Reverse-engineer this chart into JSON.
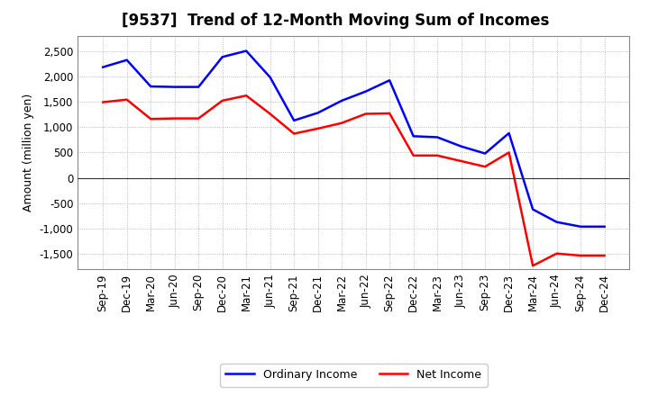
{
  "title": "[9537]  Trend of 12-Month Moving Sum of Incomes",
  "ylabel": "Amount (million yen)",
  "x_labels": [
    "Sep-19",
    "Dec-19",
    "Mar-20",
    "Jun-20",
    "Sep-20",
    "Dec-20",
    "Mar-21",
    "Jun-21",
    "Sep-21",
    "Dec-21",
    "Mar-22",
    "Jun-22",
    "Sep-22",
    "Dec-22",
    "Mar-23",
    "Jun-23",
    "Sep-23",
    "Dec-23",
    "Mar-24",
    "Jun-24",
    "Sep-24",
    "Dec-24"
  ],
  "ordinary_income": [
    2180,
    2320,
    1800,
    1790,
    1790,
    2380,
    2500,
    1980,
    1130,
    1280,
    1520,
    1700,
    1920,
    820,
    800,
    620,
    480,
    880,
    -620,
    -870,
    -960,
    -960
  ],
  "net_income": [
    1490,
    1540,
    1160,
    1170,
    1170,
    1520,
    1620,
    1260,
    870,
    970,
    1080,
    1260,
    1270,
    440,
    440,
    330,
    220,
    500,
    -1730,
    -1490,
    -1530,
    -1530
  ],
  "ordinary_income_color": "#0000ff",
  "net_income_color": "#ff0000",
  "ylim": [
    -1800,
    2800
  ],
  "yticks": [
    -1500,
    -1000,
    -500,
    0,
    500,
    1000,
    1500,
    2000,
    2500
  ],
  "background_color": "#ffffff",
  "grid_color": "#aaaaaa",
  "plot_bg_color": "#ffffff",
  "legend_labels": [
    "Ordinary Income",
    "Net Income"
  ],
  "line_width": 1.8,
  "title_fontsize": 12,
  "axis_fontsize": 9,
  "tick_fontsize": 8.5
}
